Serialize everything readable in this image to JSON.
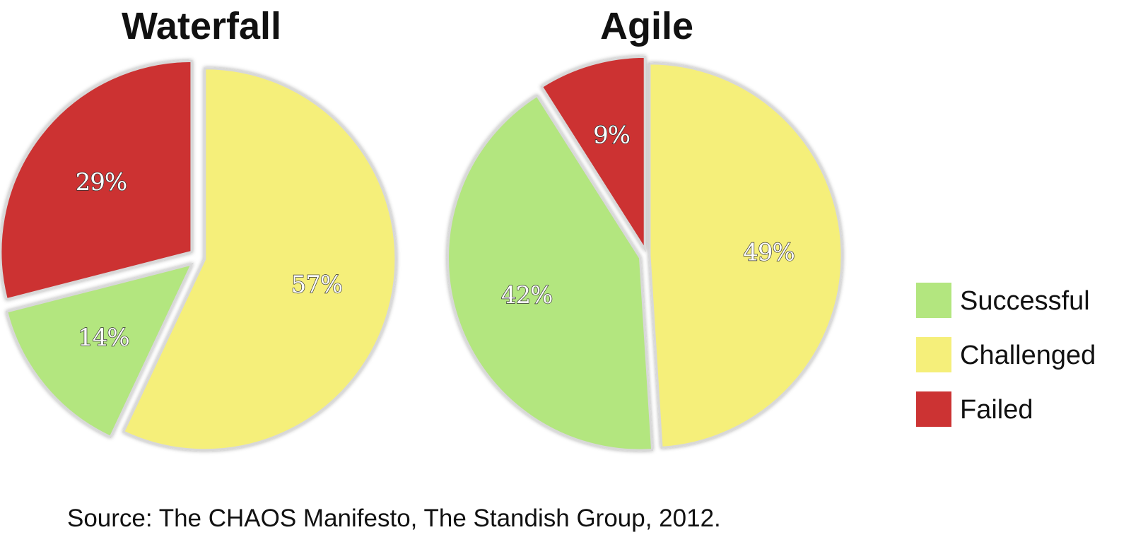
{
  "chart_data": [
    {
      "type": "pie",
      "title": "Waterfall",
      "categories": [
        "Successful",
        "Challenged",
        "Failed"
      ],
      "values": [
        14,
        57,
        29
      ],
      "labels": [
        "14%",
        "57%",
        "29%"
      ],
      "colors": [
        "#b3e67f",
        "#f5ef7a",
        "#cc3333"
      ]
    },
    {
      "type": "pie",
      "title": "Agile",
      "categories": [
        "Successful",
        "Challenged",
        "Failed"
      ],
      "values": [
        42,
        49,
        9
      ],
      "labels": [
        "42%",
        "49%",
        "9%"
      ],
      "colors": [
        "#b3e67f",
        "#f5ef7a",
        "#cc3333"
      ]
    }
  ],
  "legend": {
    "placement": "right",
    "items": [
      {
        "label": "Successful",
        "color": "#b3e67f"
      },
      {
        "label": "Challenged",
        "color": "#f5ef7a"
      },
      {
        "label": "Failed",
        "color": "#cc3333"
      }
    ]
  },
  "source": "Source: The CHAOS Manifesto, The Standish Group, 2012."
}
